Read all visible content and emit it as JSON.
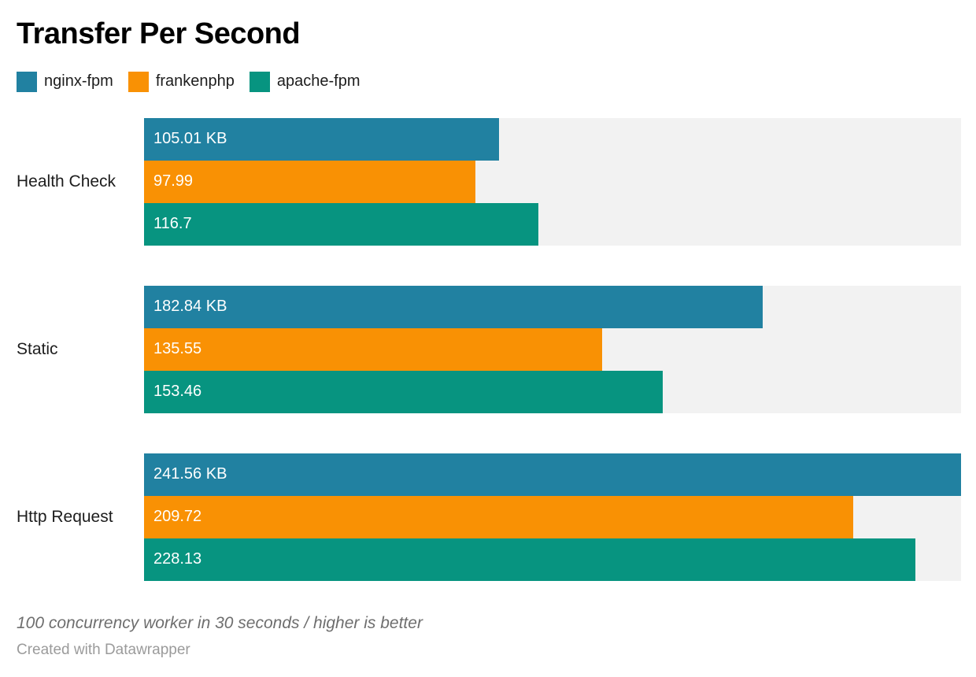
{
  "chart_data": {
    "type": "bar",
    "orientation": "horizontal",
    "title": "Transfer Per Second",
    "categories": [
      "Health Check",
      "Static",
      "Http Request"
    ],
    "series": [
      {
        "name": "nginx-fpm",
        "color": "#2181a1",
        "values": [
          105.01,
          182.84,
          241.56
        ],
        "value_labels": [
          "105.01 KB",
          "182.84 KB",
          "241.56 KB"
        ]
      },
      {
        "name": "frankenphp",
        "color": "#f99104",
        "values": [
          97.99,
          135.55,
          209.72
        ],
        "value_labels": [
          "97.99",
          "135.55",
          "209.72"
        ]
      },
      {
        "name": "apache-fpm",
        "color": "#079480",
        "values": [
          116.7,
          153.46,
          228.13
        ],
        "value_labels": [
          "116.7",
          "153.46",
          "228.13"
        ]
      }
    ],
    "unit": "KB",
    "xlim": [
      0,
      241.56
    ],
    "grid": false,
    "legend_position": "top",
    "track_background": "#f2f2f2",
    "notes": "100 concurrency worker in 30 seconds / higher is better",
    "credit": "Created with Datawrapper"
  }
}
